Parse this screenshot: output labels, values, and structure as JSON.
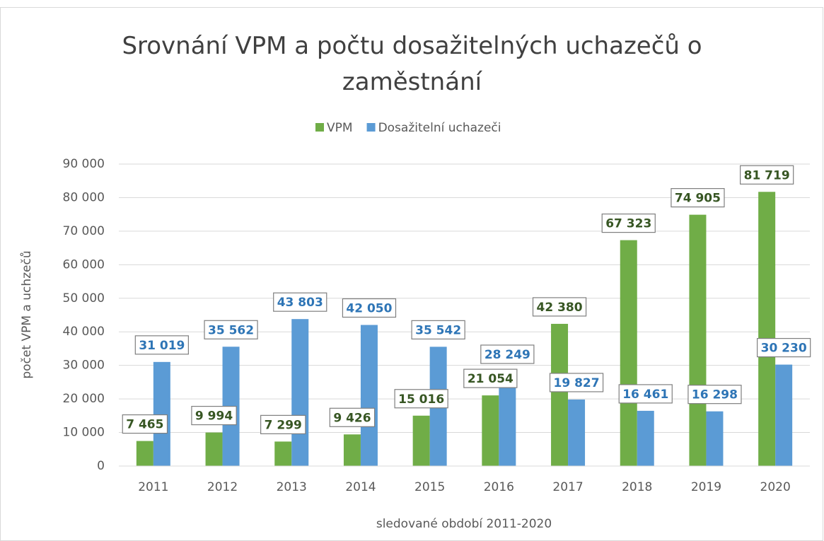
{
  "chart_data": {
    "type": "bar",
    "title": "Srovnání VPM a počtu dosažitelných uchazečů o zaměstnání",
    "x_label": "sledované období 2011-2020",
    "y_label": "počet VPM a uchzečů",
    "categories": [
      "2011",
      "2012",
      "2013",
      "2014",
      "2015",
      "2016",
      "2017",
      "2018",
      "2019",
      "2020"
    ],
    "series": [
      {
        "name": "VPM",
        "color": "#70ad47",
        "label_color": "#375623",
        "values": [
          7465,
          9994,
          7299,
          9426,
          15016,
          21054,
          42380,
          67323,
          74905,
          81719
        ],
        "value_labels": [
          "7 465",
          "9 994",
          "7 299",
          "9 426",
          "15 016",
          "21 054",
          "42 380",
          "67 323",
          "74 905",
          "81 719"
        ]
      },
      {
        "name": "Dosažitelní uchazeči",
        "color": "#5b9bd5",
        "label_color": "#2e75b6",
        "values": [
          31019,
          35562,
          43803,
          42050,
          35542,
          28249,
          19827,
          16461,
          16298,
          30230
        ],
        "value_labels": [
          "31 019",
          "35 562",
          "43 803",
          "42 050",
          "35 542",
          "28 249",
          "19 827",
          "16 461",
          "16 298",
          "30 230"
        ]
      }
    ],
    "ylim": [
      0,
      90000
    ],
    "yticks": [
      0,
      {
        "value": 10000,
        "label": "10 000"
      },
      {
        "value": 20000,
        "label": "20 000"
      },
      {
        "value": 30000,
        "label": "30 000"
      },
      {
        "value": 40000,
        "label": "40 000"
      },
      {
        "value": 50000,
        "label": "50 000"
      },
      {
        "value": 60000,
        "label": "60 000"
      },
      {
        "value": 70000,
        "label": "70 000"
      },
      {
        "value": 80000,
        "label": "80 000"
      },
      {
        "value": 90000,
        "label": "90 000"
      }
    ],
    "grid": true,
    "legend": "top"
  }
}
